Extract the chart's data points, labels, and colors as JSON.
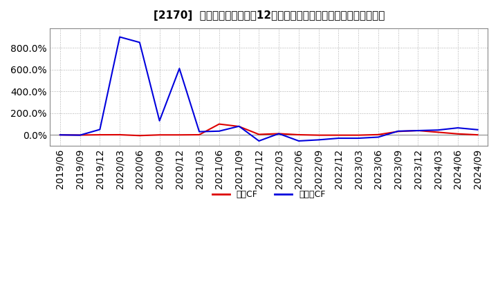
{
  "title": "[2170]  キャッシュフローの12か月移動合計の対前年同期増減率の推移",
  "background_color": "#ffffff",
  "plot_bg_color": "#ffffff",
  "grid_color": "#aaaaaa",
  "legend_labels": [
    "営業CF",
    "フリーCF"
  ],
  "line_colors": [
    "#dd0000",
    "#0000dd"
  ],
  "dates": [
    "2019/06",
    "2019/09",
    "2019/12",
    "2020/03",
    "2020/06",
    "2020/09",
    "2020/12",
    "2021/03",
    "2021/06",
    "2021/09",
    "2021/12",
    "2022/03",
    "2022/06",
    "2022/09",
    "2022/12",
    "2023/03",
    "2023/06",
    "2023/09",
    "2023/12",
    "2024/03",
    "2024/06",
    "2024/09"
  ],
  "operating_cf_pct": [
    0.5,
    -1.0,
    1.5,
    2.0,
    -6.0,
    0.5,
    0.5,
    2.0,
    100.0,
    78.0,
    5.0,
    12.0,
    2.0,
    -2.0,
    -2.0,
    -2.0,
    3.0,
    32.0,
    40.0,
    25.0,
    10.0,
    1.0
  ],
  "free_cf_pct": [
    0.5,
    -2.0,
    50.0,
    900.0,
    850.0,
    130.0,
    610.0,
    30.0,
    35.0,
    80.0,
    -55.0,
    12.0,
    -55.0,
    -45.0,
    -30.0,
    -30.0,
    -20.0,
    35.0,
    40.0,
    45.0,
    65.0,
    48.0
  ],
  "ytick_vals": [
    0,
    200,
    400,
    600,
    800
  ],
  "ytick_labels": [
    "0.0%",
    "200.0%",
    "400.0%",
    "600.0%",
    "800.0%"
  ],
  "ylim_min": -100,
  "ylim_max": 980
}
